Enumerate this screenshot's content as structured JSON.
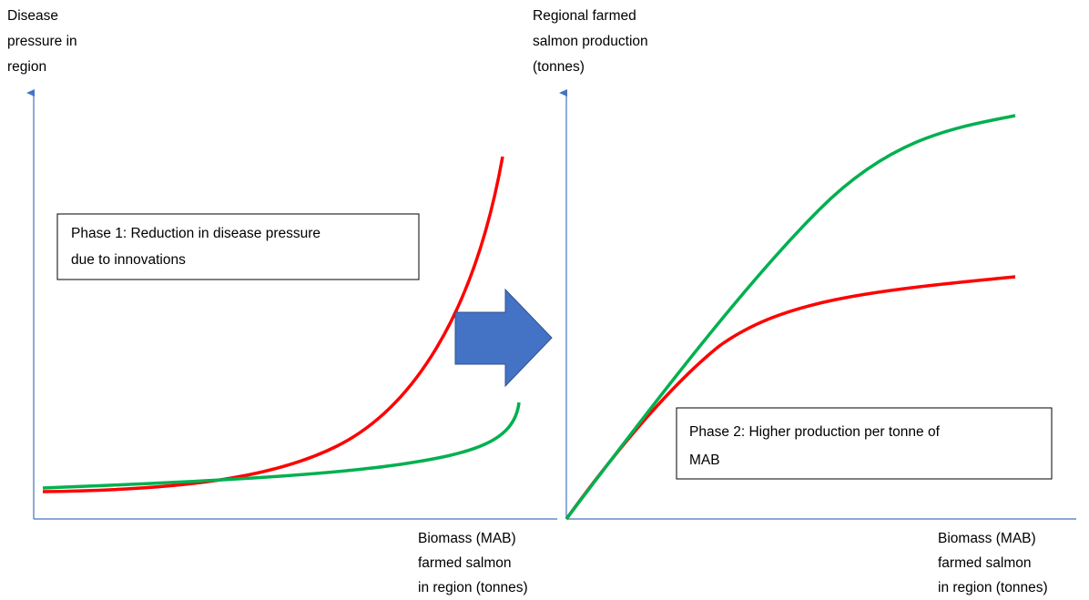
{
  "left_panel": {
    "y_axis_label": [
      "Disease",
      "pressure in",
      "region"
    ],
    "x_axis_label": [
      "Biomass (MAB)",
      "farmed salmon",
      "in region (tonnes)"
    ],
    "box": [
      "Phase 1: Reduction in disease pressure",
      "due to innovations"
    ]
  },
  "right_panel": {
    "y_axis_label": [
      "Regional farmed",
      "salmon production",
      "(tonnes)"
    ],
    "x_axis_label": [
      "Biomass (MAB)",
      "farmed salmon",
      "in region (tonnes)"
    ],
    "box": [
      "Phase 2: Higher production per tonne of",
      "MAB"
    ]
  }
}
